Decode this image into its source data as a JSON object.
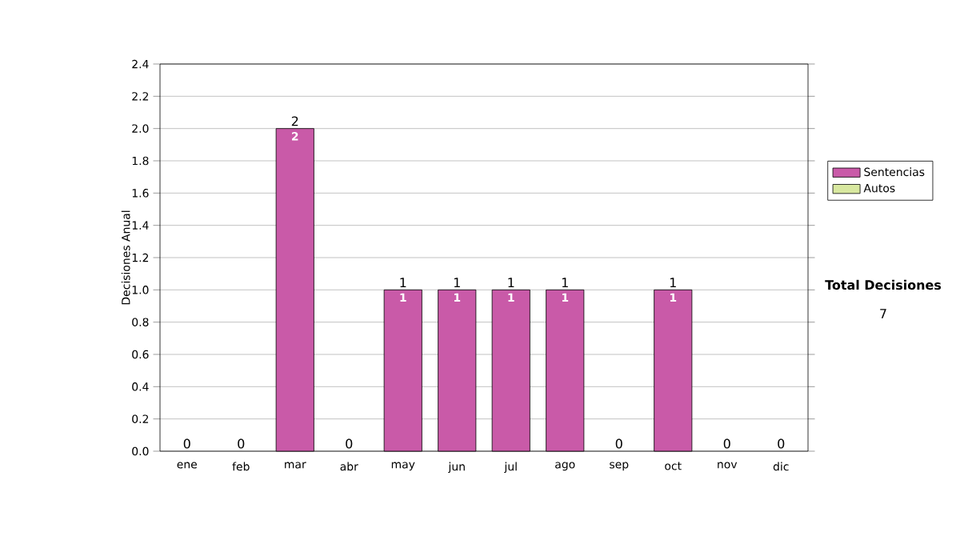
{
  "chart_data": {
    "type": "bar",
    "stacked": true,
    "ylabel": "Decisiones Anual",
    "categories": [
      "ene",
      "feb",
      "mar",
      "abr",
      "may",
      "jun",
      "jul",
      "ago",
      "sep",
      "oct",
      "nov",
      "dic"
    ],
    "series": [
      {
        "name": "Sentencias",
        "color": "#c95aa8",
        "values": [
          0,
          0,
          2,
          0,
          1,
          1,
          1,
          1,
          0,
          1,
          0,
          0
        ],
        "value_labels": [
          null,
          null,
          "2",
          null,
          "1",
          "1",
          "1",
          "1",
          null,
          "1",
          null,
          null
        ]
      },
      {
        "name": "Autos",
        "color": "#d8e8a0",
        "values": [
          0,
          0,
          0,
          0,
          0,
          0,
          0,
          0,
          0,
          0,
          0,
          0
        ]
      }
    ],
    "totals": [
      "0",
      "0",
      "2",
      "0",
      "1",
      "1",
      "1",
      "1",
      "0",
      "1",
      "0",
      "0"
    ],
    "ylim": [
      0,
      2.4
    ],
    "yticks": [
      {
        "value": 0,
        "label": "0.0"
      },
      {
        "value": 0.2,
        "label": "0.2"
      },
      {
        "value": 0.4,
        "label": "0.4"
      },
      {
        "value": 0.6,
        "label": "0.6"
      },
      {
        "value": 0.8,
        "label": "0.8"
      },
      {
        "value": 1,
        "label": "1.0"
      },
      {
        "value": 1.2,
        "label": "1.2"
      },
      {
        "value": 1.4,
        "label": "1.4"
      },
      {
        "value": 1.6,
        "label": "1.6"
      },
      {
        "value": 1.8,
        "label": "1.8"
      },
      {
        "value": 2,
        "label": "2.0"
      },
      {
        "value": 2.2,
        "label": "2.2"
      },
      {
        "value": 2.4,
        "label": "2.4"
      }
    ],
    "grid": "y",
    "legend": "right",
    "annotations": [
      "**Total Decisiones**",
      "7"
    ]
  }
}
